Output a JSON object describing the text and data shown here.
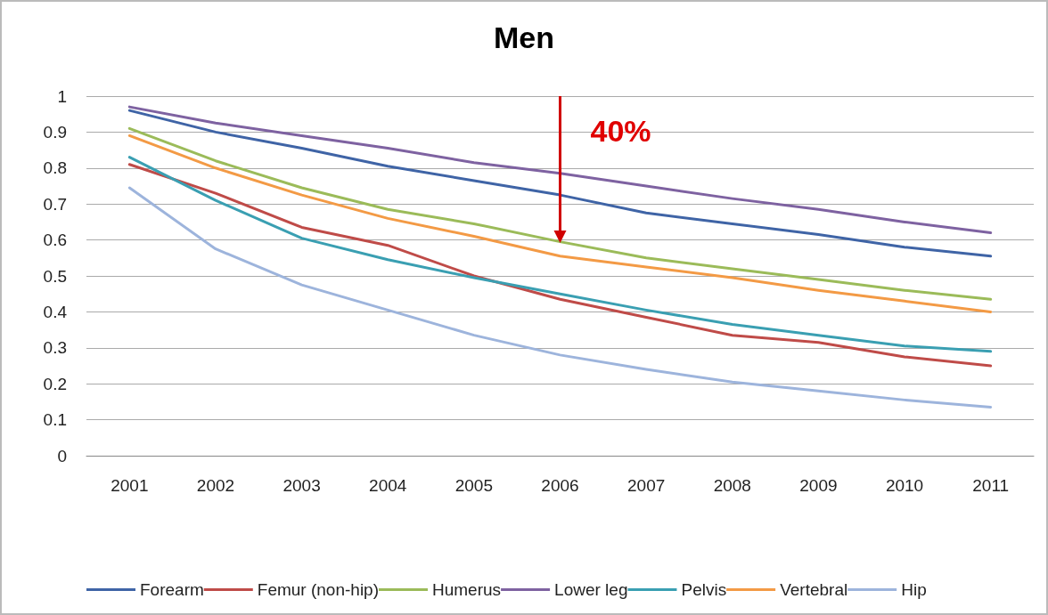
{
  "chart_data": {
    "type": "line",
    "title": "Men",
    "categories": [
      "2001",
      "2002",
      "2003",
      "2004",
      "2005",
      "2006",
      "2007",
      "2008",
      "2009",
      "2010",
      "2011"
    ],
    "series": [
      {
        "name": "Forearm",
        "color": "#3f64a6",
        "values": [
          0.96,
          0.9,
          0.855,
          0.805,
          0.765,
          0.725,
          0.675,
          0.645,
          0.615,
          0.58,
          0.555
        ]
      },
      {
        "name": "Femur (non-hip)",
        "color": "#bf4b48",
        "values": [
          0.81,
          0.73,
          0.635,
          0.585,
          0.5,
          0.435,
          0.385,
          0.335,
          0.315,
          0.275,
          0.25
        ]
      },
      {
        "name": "Humerus",
        "color": "#9bbb59",
        "values": [
          0.91,
          0.82,
          0.745,
          0.685,
          0.645,
          0.595,
          0.55,
          0.52,
          0.49,
          0.46,
          0.435
        ]
      },
      {
        "name": "Lower leg",
        "color": "#7e62a1",
        "values": [
          0.97,
          0.925,
          0.89,
          0.855,
          0.815,
          0.785,
          0.75,
          0.715,
          0.685,
          0.65,
          0.62
        ]
      },
      {
        "name": "Pelvis",
        "color": "#3a9fb2",
        "values": [
          0.83,
          0.71,
          0.605,
          0.545,
          0.495,
          0.45,
          0.405,
          0.365,
          0.335,
          0.305,
          0.29
        ]
      },
      {
        "name": "Vertebral",
        "color": "#f39a45",
        "values": [
          0.89,
          0.8,
          0.725,
          0.66,
          0.61,
          0.555,
          0.525,
          0.495,
          0.46,
          0.43,
          0.4
        ]
      },
      {
        "name": "Hip",
        "color": "#9db4dc",
        "values": [
          0.745,
          0.575,
          0.475,
          0.405,
          0.335,
          0.28,
          0.24,
          0.205,
          0.18,
          0.155,
          0.135
        ]
      }
    ],
    "ylim": [
      0,
      1
    ],
    "yticks": [
      0,
      0.1,
      0.2,
      0.3,
      0.4,
      0.5,
      0.6,
      0.7,
      0.8,
      0.9,
      1
    ],
    "grid": "y",
    "legend": "bottom",
    "marker": "none",
    "line_style": "solid",
    "annotations": [
      "40%"
    ]
  }
}
